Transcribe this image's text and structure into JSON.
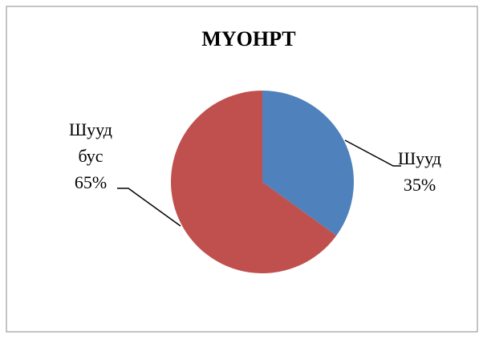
{
  "chart_data": {
    "type": "pie",
    "title": "МҮОНРТ",
    "categories": [
      "Шууд",
      "Шууд бус"
    ],
    "values": [
      35,
      65
    ],
    "value_labels": [
      "35%",
      "65%"
    ],
    "colors": [
      "#4f81bd",
      "#c0504d"
    ]
  }
}
